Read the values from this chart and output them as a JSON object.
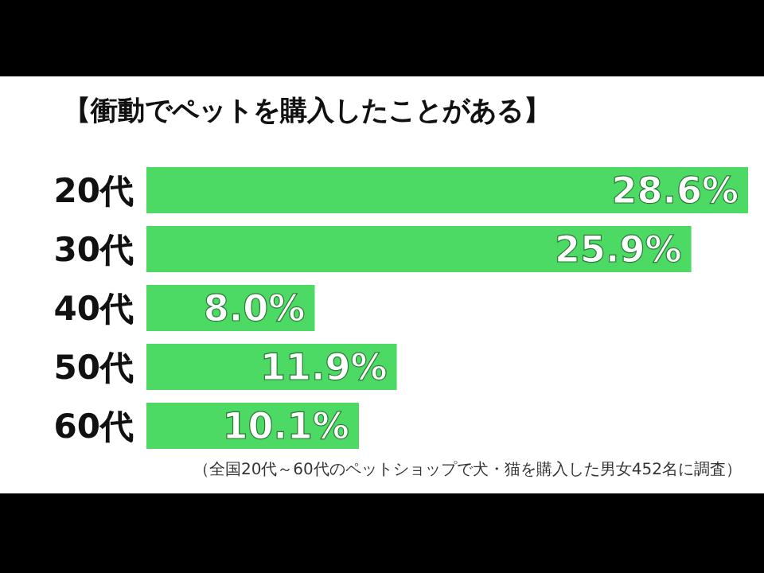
{
  "chart_data": {
    "type": "bar",
    "orientation": "horizontal",
    "title": "【衝動でペットを購入したことがある】",
    "categories": [
      "20代",
      "30代",
      "40代",
      "50代",
      "60代"
    ],
    "values": [
      28.6,
      25.9,
      8.0,
      11.9,
      10.1
    ],
    "color": "#4cd964",
    "value_labels": [
      "28.6%",
      "25.9%",
      "8.0%",
      "11.9%",
      "10.1%"
    ],
    "annotations": [
      "（全国20代～60代のペットショップで犬・猫を購入した男女452名に調査）"
    ]
  }
}
